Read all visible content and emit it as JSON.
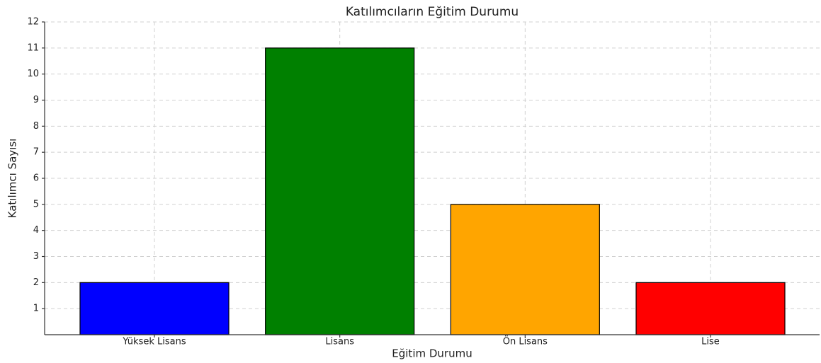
{
  "chart_data": {
    "type": "bar",
    "title": "Katılımcıların Eğitim Durumu",
    "x_label": "Eğitim Durumu",
    "y_label": "Katılımcı Sayısı",
    "categories": [
      "Yüksek Lisans",
      "Lisans",
      "Ön Lisans",
      "Lise"
    ],
    "values": [
      2,
      11,
      5,
      2
    ],
    "colors": [
      "#0000ff",
      "#008000",
      "#ffa500",
      "#ff0000"
    ],
    "ylim": [
      0,
      12
    ],
    "yticks": [
      1,
      2,
      3,
      4,
      5,
      6,
      7,
      8,
      9,
      10,
      11,
      12
    ],
    "grid": true
  }
}
